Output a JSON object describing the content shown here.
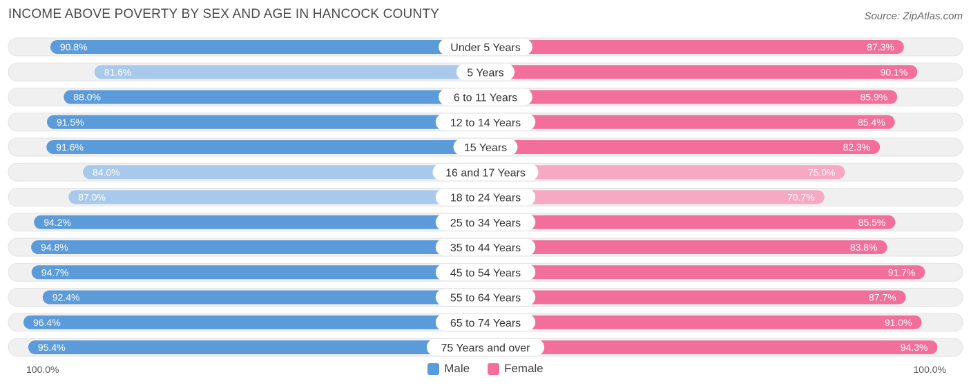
{
  "title": "INCOME ABOVE POVERTY BY SEX AND AGE IN HANCOCK COUNTY",
  "source": "Source: ZipAtlas.com",
  "colors": {
    "male_strong": "#5b9bd9",
    "male_light": "#a9c9ec",
    "female_strong": "#f36f9b",
    "female_light": "#f7a8c2",
    "track": "#f0f0f0"
  },
  "legend": {
    "male_label": "Male",
    "female_label": "Female"
  },
  "axis": {
    "left_label": "100.0%",
    "right_label": "100.0%"
  },
  "chart_data": {
    "type": "bar",
    "orientation": "horizontal-diverging",
    "categories": [
      "Under 5 Years",
      "5 Years",
      "6 to 11 Years",
      "12 to 14 Years",
      "15 Years",
      "16 and 17 Years",
      "18 to 24 Years",
      "25 to 34 Years",
      "35 to 44 Years",
      "45 to 54 Years",
      "55 to 64 Years",
      "65 to 74 Years",
      "75 Years and over"
    ],
    "series": [
      {
        "name": "Male",
        "values": [
          90.8,
          81.6,
          88.0,
          91.5,
          91.6,
          84.0,
          87.0,
          94.2,
          94.8,
          94.7,
          92.4,
          96.4,
          95.4
        ],
        "labels": [
          "90.8%",
          "81.6%",
          "88.0%",
          "91.5%",
          "91.6%",
          "84.0%",
          "87.0%",
          "94.2%",
          "94.8%",
          "94.7%",
          "92.4%",
          "96.4%",
          "95.4%"
        ]
      },
      {
        "name": "Female",
        "values": [
          87.3,
          90.1,
          85.9,
          85.4,
          82.3,
          75.0,
          70.7,
          85.5,
          83.8,
          91.7,
          87.7,
          91.0,
          94.3
        ],
        "labels": [
          "87.3%",
          "90.1%",
          "85.9%",
          "85.4%",
          "82.3%",
          "75.0%",
          "70.7%",
          "85.5%",
          "83.8%",
          "91.7%",
          "87.7%",
          "91.0%",
          "94.3%"
        ]
      }
    ],
    "xlim": [
      0,
      100
    ],
    "legend_position": "bottom-center"
  }
}
